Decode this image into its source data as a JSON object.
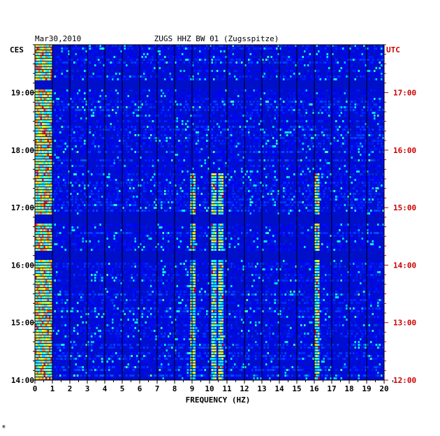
{
  "header": {
    "date": "Mar30,2010",
    "station": "ZUGS HHZ BW 01 (Zugsspitze)",
    "left_zone": "CES",
    "right_zone": "UTC"
  },
  "footer_mark": "*",
  "chart_data": {
    "type": "heatmap",
    "title": "ZUGS HHZ BW 01 (Zugsspitze)",
    "date": "Mar30,2010",
    "xlabel": "FREQUENCY (HZ)",
    "x_ticks": [
      "0",
      "1",
      "2",
      "3",
      "4",
      "5",
      "6",
      "7",
      "8",
      "9",
      "10",
      "11",
      "12",
      "13",
      "14",
      "15",
      "16",
      "17",
      "18",
      "19",
      "20"
    ],
    "xlim": [
      0,
      20
    ],
    "y_left_label": "CES",
    "y_right_label": "UTC",
    "y_left_ticks": [
      "19:00",
      "18:00",
      "17:00",
      "16:00",
      "15:00",
      "14:00"
    ],
    "y_right_ticks": [
      "17:00",
      "16:00",
      "15:00",
      "14:00",
      "13:00",
      "12:00"
    ],
    "time_range_ces": [
      "14:00",
      "19:50"
    ],
    "colormap": [
      "#000080",
      "#0000ff",
      "#00ffff",
      "#ffff00",
      "#ff0000"
    ],
    "bright_features": [
      {
        "frequency_hz": 0.4,
        "description": "continuous low-frequency energy band"
      },
      {
        "frequency_hz": 9.0,
        "description": "tonal line"
      },
      {
        "frequency_hz": 10.2,
        "description": "tonal line"
      },
      {
        "frequency_hz": 10.6,
        "description": "tonal line"
      },
      {
        "frequency_hz": 16.1,
        "description": "tonal line"
      }
    ],
    "dark_gaps_ces": [
      "19:10",
      "16:48",
      "16:12"
    ],
    "grid": true
  }
}
